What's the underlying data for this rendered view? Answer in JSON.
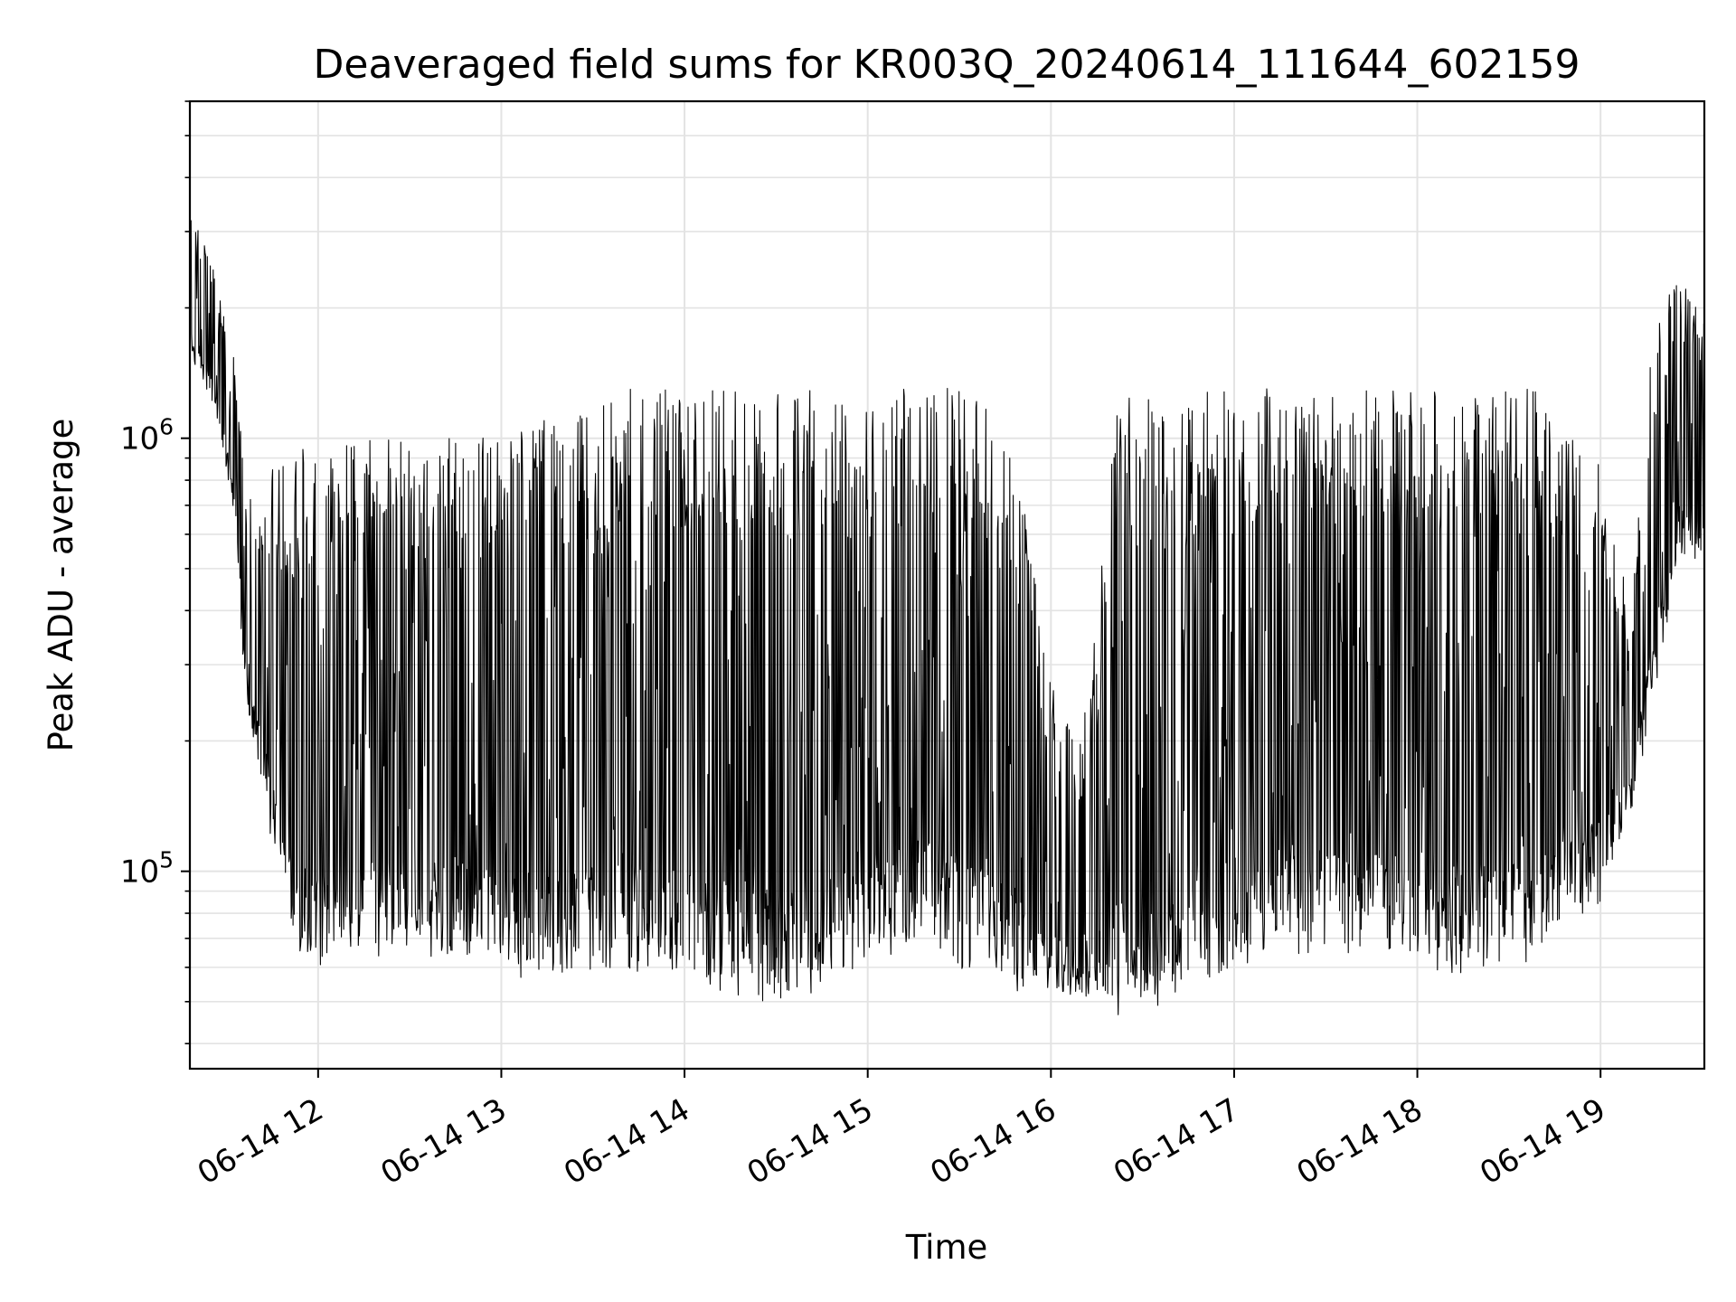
{
  "chart_data": {
    "type": "line",
    "title": "Deaveraged field sums for KR003Q_20240614_111644_602159",
    "xlabel": "Time",
    "ylabel": "Peak ADU - average",
    "x_axis": {
      "kind": "datetime",
      "range": [
        "2024-06-14 11:18",
        "2024-06-14 19:34"
      ],
      "tick_values": [
        "2024-06-14 12:00",
        "2024-06-14 13:00",
        "2024-06-14 14:00",
        "2024-06-14 15:00",
        "2024-06-14 16:00",
        "2024-06-14 17:00",
        "2024-06-14 18:00",
        "2024-06-14 19:00"
      ],
      "tick_labels": [
        "06-14 12",
        "06-14 13",
        "06-14 14",
        "06-14 15",
        "06-14 16",
        "06-14 17",
        "06-14 18",
        "06-14 19"
      ]
    },
    "y_axis": {
      "scale": "log",
      "range": [
        35000,
        6000000
      ],
      "major_ticks": [
        {
          "value": 100000,
          "base": "10",
          "exp": "5"
        },
        {
          "value": 1000000,
          "base": "10",
          "exp": "6"
        }
      ]
    },
    "grid": true,
    "line_color": "#000000",
    "series": [
      {
        "x": [
          "2024-06-14 11:18",
          "2024-06-14 11:23",
          "2024-06-14 11:28",
          "2024-06-14 11:33",
          "2024-06-14 11:36",
          "2024-06-14 11:40",
          "2024-06-14 11:45",
          "2024-06-14 11:50",
          "2024-06-14 11:55",
          "2024-06-14 12:00",
          "2024-06-14 12:10",
          "2024-06-14 12:20",
          "2024-06-14 12:30",
          "2024-06-14 12:40",
          "2024-06-14 12:50",
          "2024-06-14 13:00",
          "2024-06-14 13:10",
          "2024-06-14 13:20",
          "2024-06-14 13:30",
          "2024-06-14 13:40",
          "2024-06-14 13:50",
          "2024-06-14 14:00",
          "2024-06-14 14:10",
          "2024-06-14 14:20",
          "2024-06-14 14:30",
          "2024-06-14 14:40",
          "2024-06-14 14:50",
          "2024-06-14 15:00",
          "2024-06-14 15:10",
          "2024-06-14 15:20",
          "2024-06-14 15:30",
          "2024-06-14 15:40",
          "2024-06-14 15:50",
          "2024-06-14 16:00",
          "2024-06-14 16:10",
          "2024-06-14 16:20",
          "2024-06-14 16:30",
          "2024-06-14 16:40",
          "2024-06-14 16:50",
          "2024-06-14 17:00",
          "2024-06-14 17:10",
          "2024-06-14 17:20",
          "2024-06-14 17:30",
          "2024-06-14 17:40",
          "2024-06-14 17:50",
          "2024-06-14 18:00",
          "2024-06-14 18:10",
          "2024-06-14 18:20",
          "2024-06-14 18:30",
          "2024-06-14 18:40",
          "2024-06-14 18:50",
          "2024-06-14 19:00",
          "2024-06-14 19:05",
          "2024-06-14 19:10",
          "2024-06-14 19:15",
          "2024-06-14 19:20",
          "2024-06-14 19:25",
          "2024-06-14 19:30",
          "2024-06-14 19:34"
        ],
        "low": [
          1500000,
          1300000,
          1000000,
          600000,
          250000,
          180000,
          110000,
          70000,
          60000,
          60000,
          60000,
          60000,
          60000,
          60000,
          60000,
          60000,
          55000,
          55000,
          55000,
          55000,
          55000,
          55000,
          50000,
          48000,
          46000,
          48000,
          52000,
          60000,
          60000,
          70000,
          55000,
          55000,
          50000,
          50000,
          50000,
          45000,
          45000,
          48000,
          52000,
          55000,
          60000,
          60000,
          60000,
          60000,
          60000,
          60000,
          58000,
          55000,
          55000,
          60000,
          80000,
          80000,
          110000,
          130000,
          200000,
          300000,
          500000,
          500000,
          550000
        ],
        "high": [
          3500000,
          2800000,
          2200000,
          1500000,
          800000,
          700000,
          850000,
          900000,
          950000,
          1000000,
          1000000,
          1000000,
          1000000,
          1000000,
          1000000,
          1050000,
          1100000,
          1100000,
          1200000,
          1300000,
          1300000,
          1300000,
          1300000,
          1300000,
          1300000,
          1300000,
          1250000,
          1200000,
          1350000,
          1400000,
          1300000,
          1200000,
          800000,
          300000,
          200000,
          1250000,
          1250000,
          1250000,
          1350000,
          1300000,
          1350000,
          1400000,
          1300000,
          1300000,
          1300000,
          1300000,
          1300000,
          1300000,
          1300000,
          1300000,
          1000000,
          900000,
          600000,
          400000,
          1500000,
          2000000,
          2500000,
          2200000,
          2000000
        ]
      }
    ]
  }
}
